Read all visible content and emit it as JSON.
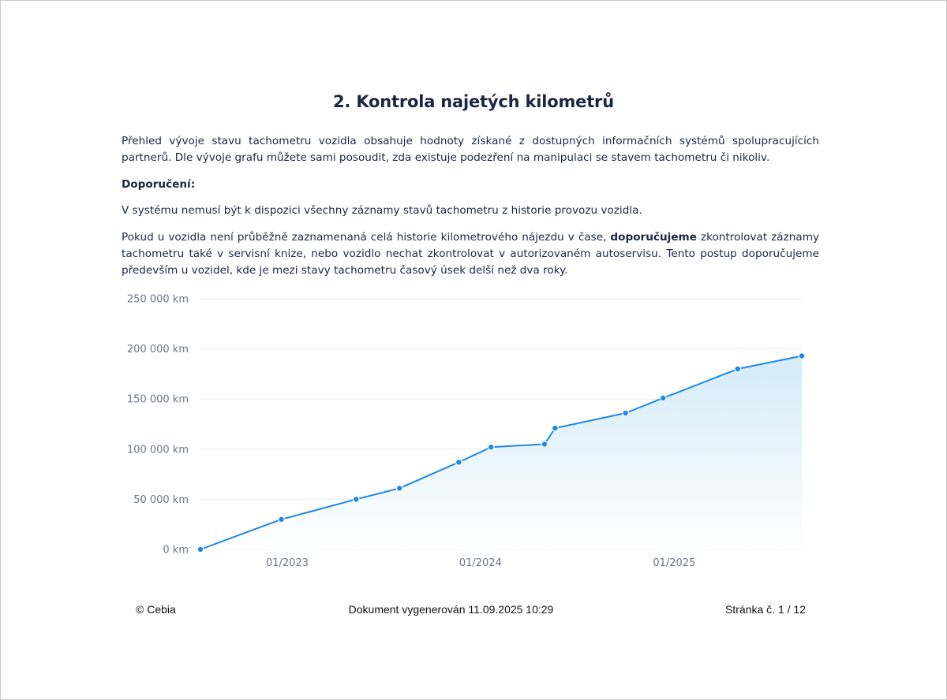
{
  "section": {
    "title": "2. Kontrola najetých kilometrů",
    "intro": "Přehled vývoje stavu tachometru vozidla obsahuje hodnoty získané z dostupných informačních systémů spolupracujících partnerů. Dle vývoje grafu můžete sami posoudit, zda existuje podezření na manipulaci se stavem tachometru či nikoliv.",
    "recommendation_heading": "Doporučení:",
    "recommendation_text": "V systému nemusí být k dispozici všechny záznamy stavů tachometru z historie provozu vozidla.",
    "advice_before": "Pokud u vozidla není průběžně zaznamenaná celá historie kilometrového nájezdu v čase, ",
    "advice_bold": "doporučujeme",
    "advice_after": " zkontrolovat záznamy tachometru také v servisní knize, nebo vozidlo nechat zkontrolovat v autorizovaném autoservisu. Tento postup doporučujeme především u vozidel, kde je mezi stavy tachometru časový úsek delší než dva roky."
  },
  "chart_data": {
    "type": "area",
    "title": "",
    "xlabel": "",
    "ylabel": "",
    "ylim": [
      0,
      250000
    ],
    "xlim": [
      "2022-07-21",
      "2025-08-30"
    ],
    "y_ticks": [
      {
        "value": 0,
        "label": "0 km"
      },
      {
        "value": 50000,
        "label": "50 000 km"
      },
      {
        "value": 100000,
        "label": "100 000 km"
      },
      {
        "value": 150000,
        "label": "150 000 km"
      },
      {
        "value": 200000,
        "label": "200 000 km"
      },
      {
        "value": 250000,
        "label": "250 000 km"
      }
    ],
    "x_ticks": [
      {
        "value": "2023-01-01",
        "label": "01/2023"
      },
      {
        "value": "2024-01-01",
        "label": "01/2024"
      },
      {
        "value": "2025-01-01",
        "label": "01/2025"
      }
    ],
    "grid": true,
    "legend": "none",
    "colors": {
      "line": "#1e88e5",
      "area_top": "#cfe9f8",
      "area_bottom": "#ffffff",
      "grid": "#e9ecef",
      "tick_text": "#6b7686"
    },
    "series": [
      {
        "points": [
          {
            "x": "2022-07-21",
            "y": 0
          },
          {
            "x": "2022-12-21",
            "y": 30000
          },
          {
            "x": "2023-05-11",
            "y": 50000
          },
          {
            "x": "2023-08-01",
            "y": 61000
          },
          {
            "x": "2023-11-21",
            "y": 87000
          },
          {
            "x": "2024-01-21",
            "y": 102000
          },
          {
            "x": "2024-05-01",
            "y": 105000
          },
          {
            "x": "2024-05-21",
            "y": 121000
          },
          {
            "x": "2024-10-01",
            "y": 136000
          },
          {
            "x": "2024-12-11",
            "y": 151000
          },
          {
            "x": "2025-05-01",
            "y": 180000
          },
          {
            "x": "2025-08-30",
            "y": 193000
          }
        ]
      }
    ]
  },
  "footer": {
    "copyright": "© Cebia",
    "generated": "Dokument vygenerován 11.09.2025 10:29",
    "page": "Stránka č. 1 / 12"
  }
}
